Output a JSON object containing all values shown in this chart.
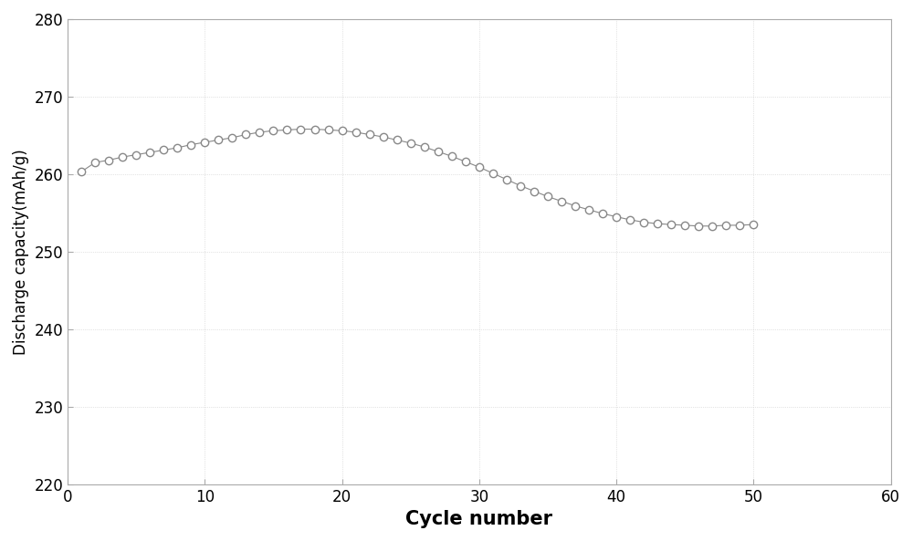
{
  "x": [
    1,
    2,
    3,
    4,
    5,
    6,
    7,
    8,
    9,
    10,
    11,
    12,
    13,
    14,
    15,
    16,
    17,
    18,
    19,
    20,
    21,
    22,
    23,
    24,
    25,
    26,
    27,
    28,
    29,
    30,
    31,
    32,
    33,
    34,
    35,
    36,
    37,
    38,
    39,
    40,
    41,
    42,
    43,
    44,
    45,
    46,
    47,
    48,
    49,
    50
  ],
  "y": [
    260.3,
    261.5,
    261.8,
    262.2,
    262.5,
    262.8,
    263.1,
    263.4,
    263.8,
    264.1,
    264.4,
    264.7,
    265.1,
    265.4,
    265.6,
    265.7,
    265.8,
    265.8,
    265.7,
    265.6,
    265.4,
    265.1,
    264.8,
    264.4,
    264.0,
    263.5,
    262.9,
    262.3,
    261.6,
    260.9,
    260.1,
    259.3,
    258.5,
    257.8,
    257.1,
    256.5,
    255.9,
    255.4,
    254.9,
    254.5,
    254.1,
    253.8,
    253.6,
    253.5,
    253.4,
    253.3,
    253.3,
    253.4,
    253.4,
    253.5
  ],
  "xlabel": "Cycle number",
  "ylabel": "Discharge capacity(mAh/g)",
  "xlim": [
    0,
    60
  ],
  "ylim": [
    220,
    280
  ],
  "xticks": [
    0,
    10,
    20,
    30,
    40,
    50,
    60
  ],
  "yticks": [
    220,
    230,
    240,
    250,
    260,
    270,
    280
  ],
  "marker": "o",
  "marker_facecolor": "white",
  "marker_edgecolor": "#888888",
  "line_color": "#888888",
  "marker_size": 6,
  "linewidth": 0.8,
  "xlabel_fontsize": 15,
  "ylabel_fontsize": 12,
  "tick_fontsize": 12,
  "background_color": "#ffffff",
  "spine_color": "#aaaaaa",
  "grid_color": "#cccccc",
  "grid_linestyle": ":",
  "grid_linewidth": 0.5
}
